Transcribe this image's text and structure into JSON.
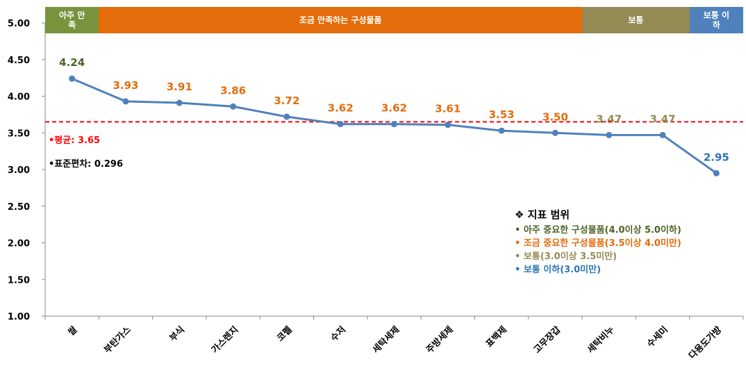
{
  "chart_data": {
    "type": "line",
    "categories": [
      "쌀",
      "부탄가스",
      "부식",
      "가스렌지",
      "코펠",
      "수저",
      "세탁세제",
      "주방세제",
      "표백제",
      "고무장갑",
      "세탁비누",
      "수세미",
      "다용도가방"
    ],
    "series": [
      {
        "color": "#4f81bd",
        "values": [
          4.24,
          3.93,
          3.91,
          3.86,
          3.72,
          3.62,
          3.62,
          3.61,
          3.53,
          3.5,
          3.47,
          3.47,
          2.95
        ],
        "value_labels": [
          "4.24",
          "3.93",
          "3.91",
          "3.86",
          "3.72",
          "3.62",
          "3.62",
          "3.61",
          "3.53",
          "3.50",
          "3.47",
          "3.47",
          "2.95"
        ]
      }
    ],
    "ylim": [
      1.0,
      5.0
    ],
    "yticks": [
      {
        "value": 1,
        "label": "1.00"
      },
      {
        "value": 1.5,
        "label": "1.50"
      },
      {
        "value": 2,
        "label": "2.00"
      },
      {
        "value": 2.5,
        "label": "2.50"
      },
      {
        "value": 3,
        "label": "3.00"
      },
      {
        "value": 3.5,
        "label": "3.50"
      },
      {
        "value": 4,
        "label": "4.00"
      },
      {
        "value": 4.5,
        "label": "4.50"
      },
      {
        "value": 5,
        "label": "5.00"
      }
    ],
    "bands": [
      {
        "label": "아주 만족",
        "color": "#77933c",
        "label_color": "#4f6228",
        "from": 0,
        "to": 0
      },
      {
        "label": "조금 만족하는 구성물품",
        "color": "#e46c0a",
        "label_color": "#e46c0a",
        "from": 1,
        "to": 9
      },
      {
        "label": "보통",
        "color": "#948a54",
        "label_color": "#948a54",
        "from": 10,
        "to": 11
      },
      {
        "label": "보통 이하",
        "color": "#4f81bd",
        "label_color": "#2e75b6",
        "from": 12,
        "to": 12
      }
    ],
    "reference_line": {
      "value": 3.65,
      "color": "#ff0000",
      "label": "•평균: 3.65"
    },
    "annotation": "•표준편차: 0.296",
    "legend_box": {
      "title": "❖ 지표 범위",
      "items": [
        {
          "text": "• 아주 중요한 구성물품(4.0이상 5.0이하)",
          "color": "#4f6228"
        },
        {
          "text": "• 조금 중요한 구성물품(3.5이상 4.0미만)",
          "color": "#e46c0a"
        },
        {
          "text": "• 보통(3.0이상 3.5미만)",
          "color": "#948a54"
        },
        {
          "text": "• 보통 이하(3.0미만)",
          "color": "#2e75b6"
        }
      ]
    }
  }
}
